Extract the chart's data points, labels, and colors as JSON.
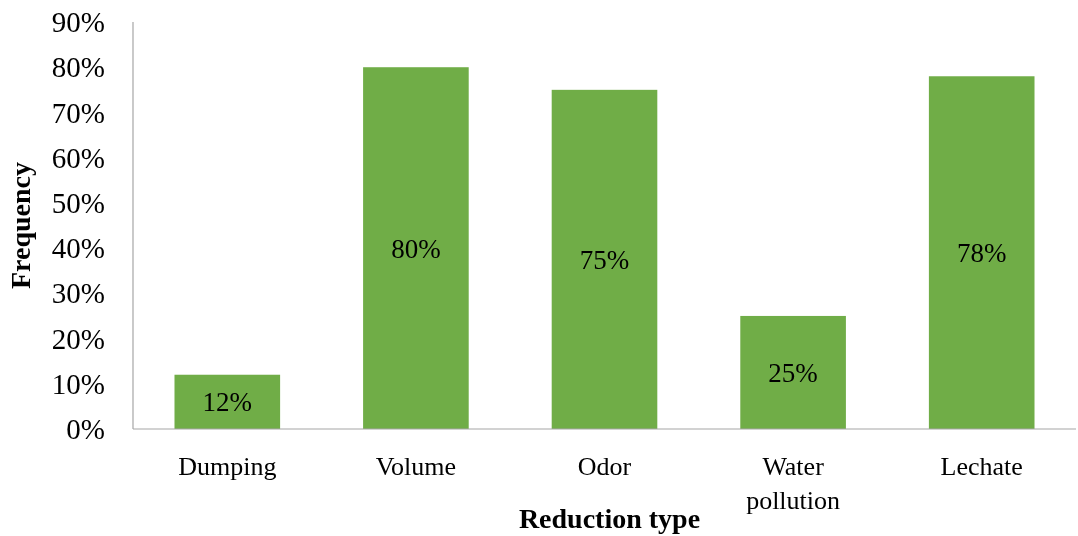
{
  "chart_data": {
    "type": "bar",
    "xlabel": "Reduction type",
    "ylabel": "Frequency",
    "categories": [
      "Dumping",
      "Volume",
      "Odor",
      "Water pollution",
      "Lechate"
    ],
    "values": [
      12,
      80,
      75,
      25,
      78
    ],
    "color": "#70ad47",
    "value_labels": [
      "12%",
      "80%",
      "75%",
      "25%",
      "78%"
    ],
    "ylim": [
      0,
      90
    ],
    "yticks": [
      {
        "value": 0,
        "label": "0%"
      },
      {
        "value": 10,
        "label": "10%"
      },
      {
        "value": 20,
        "label": "20%"
      },
      {
        "value": 30,
        "label": "30%"
      },
      {
        "value": 40,
        "label": "40%"
      },
      {
        "value": 50,
        "label": "50%"
      },
      {
        "value": 60,
        "label": "60%"
      },
      {
        "value": 70,
        "label": "70%"
      },
      {
        "value": 80,
        "label": "80%"
      },
      {
        "value": 90,
        "label": "90%"
      }
    ],
    "grid": false
  }
}
